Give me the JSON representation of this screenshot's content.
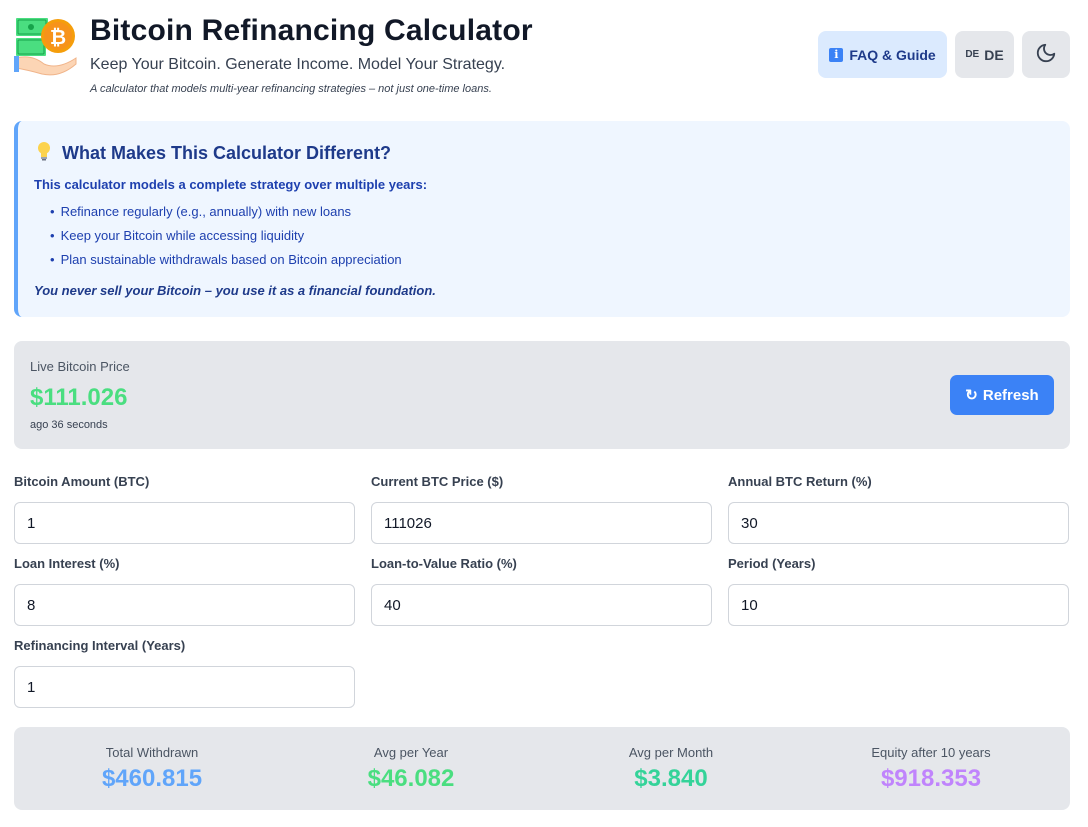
{
  "header": {
    "title": "Bitcoin Refinancing Calculator",
    "subtitle": "Keep Your Bitcoin. Generate Income. Model Your Strategy.",
    "tagline": "A calculator that models multi-year refinancing strategies – not just one-time loans.",
    "logo_icon": "bitcoin-hand-money-icon",
    "faq_label": "FAQ & Guide",
    "faq_icon": "info-icon",
    "lang_flag": "DE",
    "lang_label": "DE",
    "theme_icon": "moon-icon"
  },
  "info": {
    "icon": "lightbulb-icon",
    "title": "What Makes This Calculator Different?",
    "lead": "This calculator models a complete strategy over multiple years:",
    "items": [
      "Refinance regularly (e.g., annually) with new loans",
      "Keep your Bitcoin while accessing liquidity",
      "Plan sustainable withdrawals based on Bitcoin appreciation"
    ],
    "footer": "You never sell your Bitcoin – you use it as a financial foundation."
  },
  "price": {
    "label": "Live Bitcoin Price",
    "value": "$111.026",
    "updated": "ago 36 seconds",
    "refresh_icon": "refresh-icon",
    "refresh_label": "Refresh"
  },
  "fields": {
    "btc_amount": {
      "label": "Bitcoin Amount (BTC)",
      "value": "1"
    },
    "btc_price": {
      "label": "Current BTC Price ($)",
      "value": "111026"
    },
    "annual_return": {
      "label": "Annual BTC Return (%)",
      "value": "30"
    },
    "loan_interest": {
      "label": "Loan Interest (%)",
      "value": "8"
    },
    "ltv": {
      "label": "Loan-to-Value Ratio (%)",
      "value": "40"
    },
    "period": {
      "label": "Period (Years)",
      "value": "10"
    },
    "refi_interval": {
      "label": "Refinancing Interval (Years)",
      "value": "1"
    }
  },
  "summary": {
    "total": {
      "label": "Total Withdrawn",
      "value": "$460.815",
      "color": "#60a5fa"
    },
    "per_year": {
      "label": "Avg per Year",
      "value": "$46.082",
      "color": "#4ade80"
    },
    "per_month": {
      "label": "Avg per Month",
      "value": "$3.840",
      "color": "#34d399"
    },
    "equity": {
      "label": "Equity after 10 years",
      "value": "$918.353",
      "color": "#c084fc"
    }
  }
}
